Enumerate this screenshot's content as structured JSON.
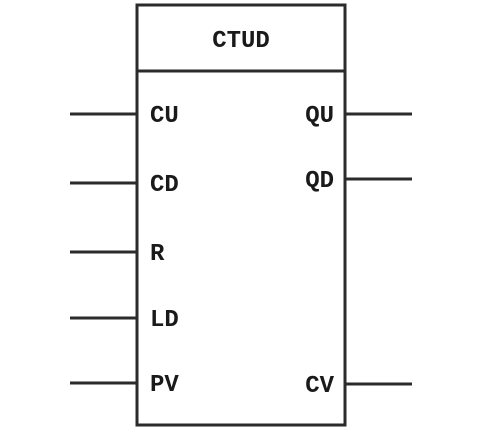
{
  "block": {
    "title": "CTUD",
    "line_color": "#2b2b2b",
    "text_color": "#1a1a1a",
    "inputs": [
      {
        "label": "CU"
      },
      {
        "label": "CD"
      },
      {
        "label": "R"
      },
      {
        "label": "LD"
      },
      {
        "label": "PV"
      }
    ],
    "outputs": [
      {
        "label": "QU"
      },
      {
        "label": "QD"
      },
      {
        "label": "CV"
      }
    ]
  }
}
